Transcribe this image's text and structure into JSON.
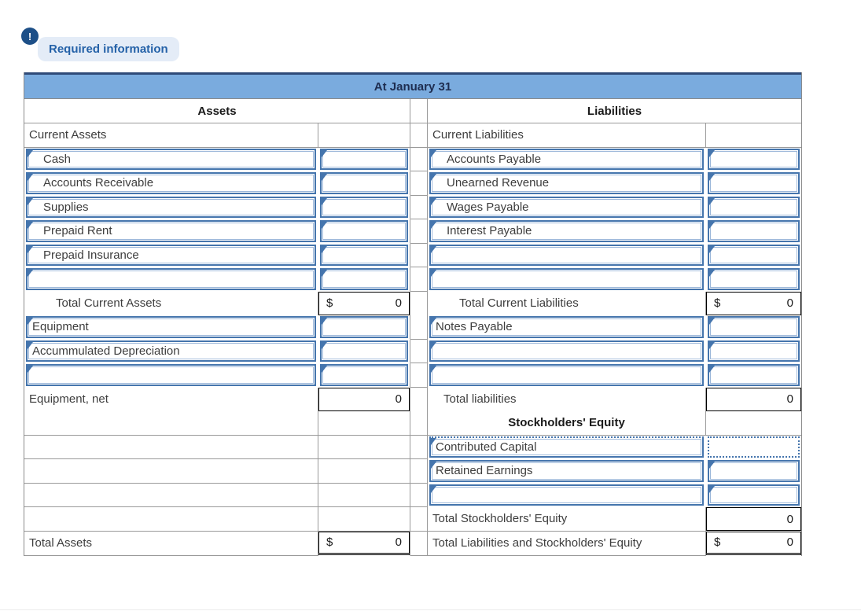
{
  "alert": {
    "icon": "!",
    "label": "Required information"
  },
  "colors": {
    "accent_blue": "#4575ad",
    "header_blue": "#7aabde",
    "navy_rule": "#2f4a78",
    "alert_circle": "#1d4f87",
    "alert_text": "#2562a8"
  },
  "table": {
    "title": "At January 31",
    "left_header": "Assets",
    "right_header": "Liabilities",
    "rows": [
      {
        "cells": [
          {
            "name": "current-assets-label",
            "type": "plain",
            "text": "Current Assets",
            "pad": 0
          },
          {
            "name": "current-assets-amount",
            "type": "blank"
          },
          {
            "name": "current-liabilities-label",
            "type": "plain",
            "text": "Current Liabilities",
            "pad": 0
          },
          {
            "name": "current-liabilities-amount",
            "type": "blank"
          }
        ]
      },
      {
        "cells": [
          {
            "name": "cash-label",
            "type": "input",
            "text": "Cash",
            "pad": 1
          },
          {
            "name": "cash-amount",
            "type": "amt_input"
          },
          {
            "name": "accounts-payable-label",
            "type": "input",
            "text": "Accounts Payable",
            "pad": 1
          },
          {
            "name": "accounts-payable-amount",
            "type": "amt_input"
          }
        ]
      },
      {
        "cells": [
          {
            "name": "accounts-receivable-label",
            "type": "input",
            "text": "Accounts Receivable",
            "pad": 1
          },
          {
            "name": "accounts-receivable-amount",
            "type": "amt_input"
          },
          {
            "name": "unearned-revenue-label",
            "type": "input",
            "text": "Unearned Revenue",
            "pad": 1
          },
          {
            "name": "unearned-revenue-amount",
            "type": "amt_input"
          }
        ]
      },
      {
        "cells": [
          {
            "name": "supplies-label",
            "type": "input",
            "text": "Supplies",
            "pad": 1
          },
          {
            "name": "supplies-amount",
            "type": "amt_input"
          },
          {
            "name": "wages-payable-label",
            "type": "input",
            "text": "Wages Payable",
            "pad": 1
          },
          {
            "name": "wages-payable-amount",
            "type": "amt_input"
          }
        ]
      },
      {
        "cells": [
          {
            "name": "prepaid-rent-label",
            "type": "input",
            "text": "Prepaid Rent",
            "pad": 1
          },
          {
            "name": "prepaid-rent-amount",
            "type": "amt_input"
          },
          {
            "name": "interest-payable-label",
            "type": "input",
            "text": "Interest Payable",
            "pad": 1
          },
          {
            "name": "interest-payable-amount",
            "type": "amt_input"
          }
        ]
      },
      {
        "cells": [
          {
            "name": "prepaid-insurance-label",
            "type": "input",
            "text": "Prepaid Insurance",
            "pad": 1
          },
          {
            "name": "prepaid-insurance-amount",
            "type": "amt_input"
          },
          {
            "name": "blank-liability-input-1-label",
            "type": "input",
            "text": "",
            "pad": 1
          },
          {
            "name": "blank-liability-input-1-amount",
            "type": "amt_input"
          }
        ]
      },
      {
        "cells": [
          {
            "name": "blank-asset-input-1-label",
            "type": "input",
            "text": "",
            "pad": 1
          },
          {
            "name": "blank-asset-input-1-amount",
            "type": "amt_input"
          },
          {
            "name": "blank-liability-input-2-label",
            "type": "input",
            "text": "",
            "pad": 1
          },
          {
            "name": "blank-liability-input-2-amount",
            "type": "amt_input"
          }
        ]
      },
      {
        "cells": [
          {
            "name": "total-current-assets-label",
            "type": "plain",
            "text": "Total Current Assets",
            "pad": 2
          },
          {
            "name": "total-current-assets-amount",
            "type": "subtotal",
            "currency": "$",
            "value": "0"
          },
          {
            "name": "total-current-liabilities-label",
            "type": "plain",
            "text": "Total Current Liabilities",
            "pad": 2
          },
          {
            "name": "total-current-liabilities-amount",
            "type": "subtotal",
            "currency": "$",
            "value": "0"
          }
        ]
      },
      {
        "cells": [
          {
            "name": "equipment-label",
            "type": "input",
            "text": "Equipment",
            "pad": 0
          },
          {
            "name": "equipment-amount",
            "type": "amt_input"
          },
          {
            "name": "notes-payable-label",
            "type": "input",
            "text": "Notes Payable",
            "pad": 0
          },
          {
            "name": "notes-payable-amount",
            "type": "amt_input"
          }
        ]
      },
      {
        "cells": [
          {
            "name": "accummulated-depreciation-label",
            "type": "input",
            "text": "Accummulated Depreciation",
            "pad": 0
          },
          {
            "name": "accummulated-depreciation-amount",
            "type": "amt_input"
          },
          {
            "name": "blank-liability-input-3-label",
            "type": "input",
            "text": "",
            "pad": 0
          },
          {
            "name": "blank-liability-input-3-amount",
            "type": "amt_input"
          }
        ]
      },
      {
        "cells": [
          {
            "name": "blank-asset-input-2-label",
            "type": "input",
            "text": "",
            "pad": 0
          },
          {
            "name": "blank-asset-input-2-amount",
            "type": "amt_input"
          },
          {
            "name": "blank-liability-input-4-label",
            "type": "input",
            "text": "",
            "pad": 0
          },
          {
            "name": "blank-liability-input-4-amount",
            "type": "amt_input"
          }
        ]
      },
      {
        "cells": [
          {
            "name": "equipment-net-label",
            "type": "plain",
            "text": "Equipment, net",
            "pad": 0
          },
          {
            "name": "equipment-net-amount",
            "type": "total0",
            "currency": "",
            "value": "0"
          },
          {
            "name": "total-liabilities-label",
            "type": "plain",
            "text": "Total liabilities",
            "pad": 1
          },
          {
            "name": "total-liabilities-amount",
            "type": "total0",
            "currency": "",
            "value": "0"
          }
        ]
      },
      {
        "cells": [
          {
            "name": "blank-asset-row-1-label",
            "type": "blank"
          },
          {
            "name": "blank-asset-row-1-amount",
            "type": "blank"
          },
          {
            "name": "stockholders-equity-header",
            "type": "sechead",
            "text": "Stockholders' Equity"
          },
          {
            "name": "stockholders-equity-header-amount",
            "type": "blank"
          }
        ]
      },
      {
        "cells": [
          {
            "name": "blank-asset-row-2-label",
            "type": "blank"
          },
          {
            "name": "blank-asset-row-2-amount",
            "type": "blank"
          },
          {
            "name": "contributed-capital-label",
            "type": "input_dotted",
            "text": "Contributed Capital",
            "pad": 0
          },
          {
            "name": "contributed-capital-amount",
            "type": "amt_dotted"
          }
        ]
      },
      {
        "cells": [
          {
            "name": "blank-asset-row-3-label",
            "type": "blank"
          },
          {
            "name": "blank-asset-row-3-amount",
            "type": "blank"
          },
          {
            "name": "retained-earnings-label",
            "type": "input",
            "text": "Retained Earnings",
            "pad": 0
          },
          {
            "name": "retained-earnings-amount",
            "type": "amt_input"
          }
        ]
      },
      {
        "cells": [
          {
            "name": "blank-asset-row-4-label",
            "type": "blank"
          },
          {
            "name": "blank-asset-row-4-amount",
            "type": "blank"
          },
          {
            "name": "blank-equity-input-1-label",
            "type": "input",
            "text": "",
            "pad": 0
          },
          {
            "name": "blank-equity-input-1-amount",
            "type": "amt_input"
          }
        ]
      },
      {
        "cells": [
          {
            "name": "blank-asset-row-5-label",
            "type": "blank"
          },
          {
            "name": "blank-asset-row-5-amount",
            "type": "blank"
          },
          {
            "name": "total-stockholders-equity-label",
            "type": "plain",
            "text": "Total Stockholders' Equity",
            "pad": 0
          },
          {
            "name": "total-stockholders-equity-amount",
            "type": "total0",
            "currency": "",
            "value": "0"
          }
        ]
      },
      {
        "cells": [
          {
            "name": "total-assets-label",
            "type": "plain",
            "text": "Total Assets",
            "pad": 0
          },
          {
            "name": "total-assets-amount",
            "type": "grand",
            "currency": "$",
            "value": "0"
          },
          {
            "name": "total-liabilities-and-stockholders-equity-label",
            "type": "plain",
            "text": "Total Liabilities and Stockholders' Equity",
            "pad": 0
          },
          {
            "name": "total-liabilities-and-stockholders-equity-amount",
            "type": "grand",
            "currency": "$",
            "value": "0"
          }
        ]
      }
    ]
  }
}
